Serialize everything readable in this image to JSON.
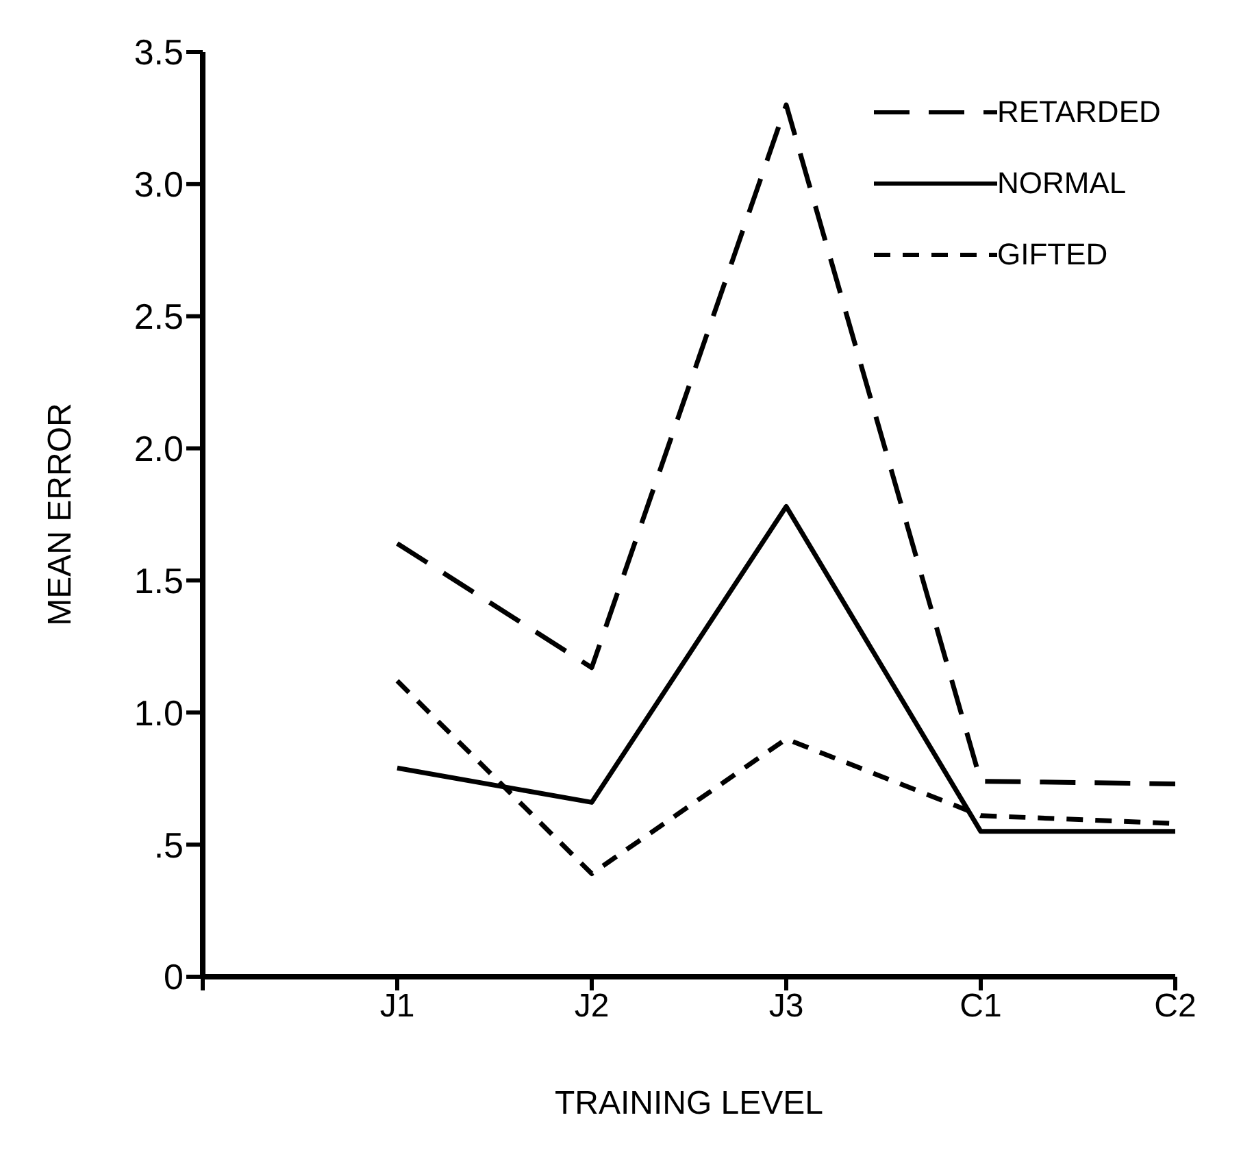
{
  "chart_data": {
    "type": "line",
    "xlabel": "TRAINING LEVEL",
    "ylabel": "MEAN ERROR",
    "categories": [
      null,
      "J1",
      "J2",
      "J3",
      "C1",
      "C2"
    ],
    "series": [
      {
        "name": "RETARDED",
        "color": "#000000",
        "line_style": "dashed",
        "values": [
          null,
          1.64,
          1.17,
          3.3,
          0.74,
          0.73
        ]
      },
      {
        "name": "NORMAL",
        "color": "#000000",
        "line_style": "solid",
        "values": [
          null,
          0.79,
          0.66,
          1.78,
          0.55,
          0.55
        ]
      },
      {
        "name": "GIFTED",
        "color": "#000000",
        "line_style": "dotted",
        "values": [
          null,
          1.12,
          0.39,
          0.9,
          0.61,
          0.58
        ]
      }
    ],
    "ylim": [
      0,
      3.5
    ],
    "yticks": [
      0,
      {
        "value": 0.5,
        "label": ".5"
      },
      {
        "value": 1,
        "label": "1.0"
      },
      {
        "value": 1.5,
        "label": "1.5"
      },
      {
        "value": 2,
        "label": "2.0"
      },
      {
        "value": 2.5,
        "label": "2.5"
      },
      {
        "value": 3,
        "label": "3.0"
      },
      {
        "value": 3.5,
        "label": "3.5"
      }
    ],
    "grid": false,
    "legend": "top right",
    "marker": "none"
  }
}
